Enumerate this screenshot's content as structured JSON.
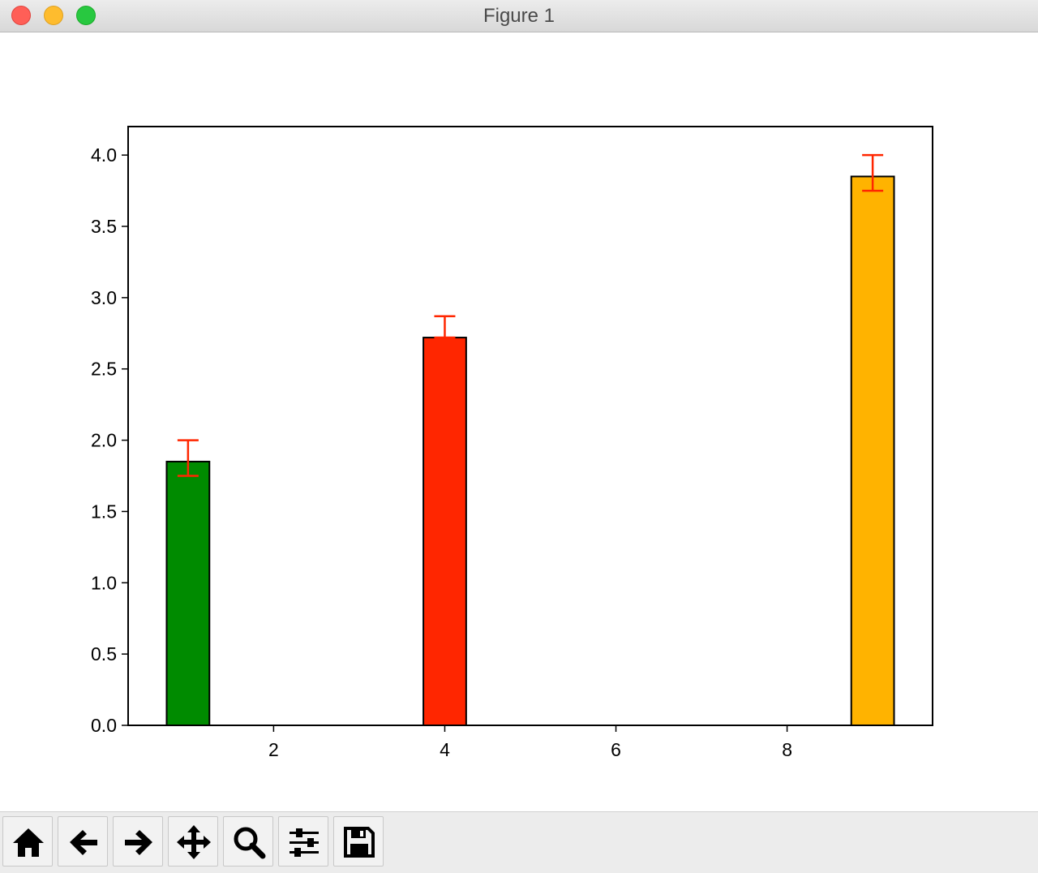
{
  "window": {
    "title": "Figure 1"
  },
  "toolbar": {
    "buttons": [
      {
        "name": "home-button",
        "icon": "home-icon"
      },
      {
        "name": "back-button",
        "icon": "arrow-left-icon"
      },
      {
        "name": "forward-button",
        "icon": "arrow-right-icon"
      },
      {
        "name": "pan-button",
        "icon": "move-icon"
      },
      {
        "name": "zoom-button",
        "icon": "magnifier-icon"
      },
      {
        "name": "configure-subplots-button",
        "icon": "sliders-icon"
      },
      {
        "name": "save-button",
        "icon": "floppy-disk-icon"
      }
    ]
  },
  "chart_data": {
    "type": "bar",
    "title": "",
    "xlabel": "",
    "ylabel": "",
    "xlim": [
      0.3,
      9.7
    ],
    "ylim": [
      0,
      4.2
    ],
    "xticks": [
      "2",
      "4",
      "6",
      "8"
    ],
    "yticks": [
      "0.0",
      "0.5",
      "1.0",
      "1.5",
      "2.0",
      "2.5",
      "3.0",
      "3.5",
      "4.0"
    ],
    "grid": false,
    "legend": "none",
    "bar_width": 0.5,
    "bars": [
      {
        "x": 1,
        "value": 1.85,
        "error": [
          0.1,
          0.15
        ],
        "color": "#008b00"
      },
      {
        "x": 4,
        "value": 2.72,
        "error": [
          0.0,
          0.15
        ],
        "color": "#ff2600"
      },
      {
        "x": 9,
        "value": 3.85,
        "error": [
          0.1,
          0.15
        ],
        "color": "#ffb300"
      }
    ],
    "error_color": "#ff2600",
    "edge_color": "#000000"
  }
}
